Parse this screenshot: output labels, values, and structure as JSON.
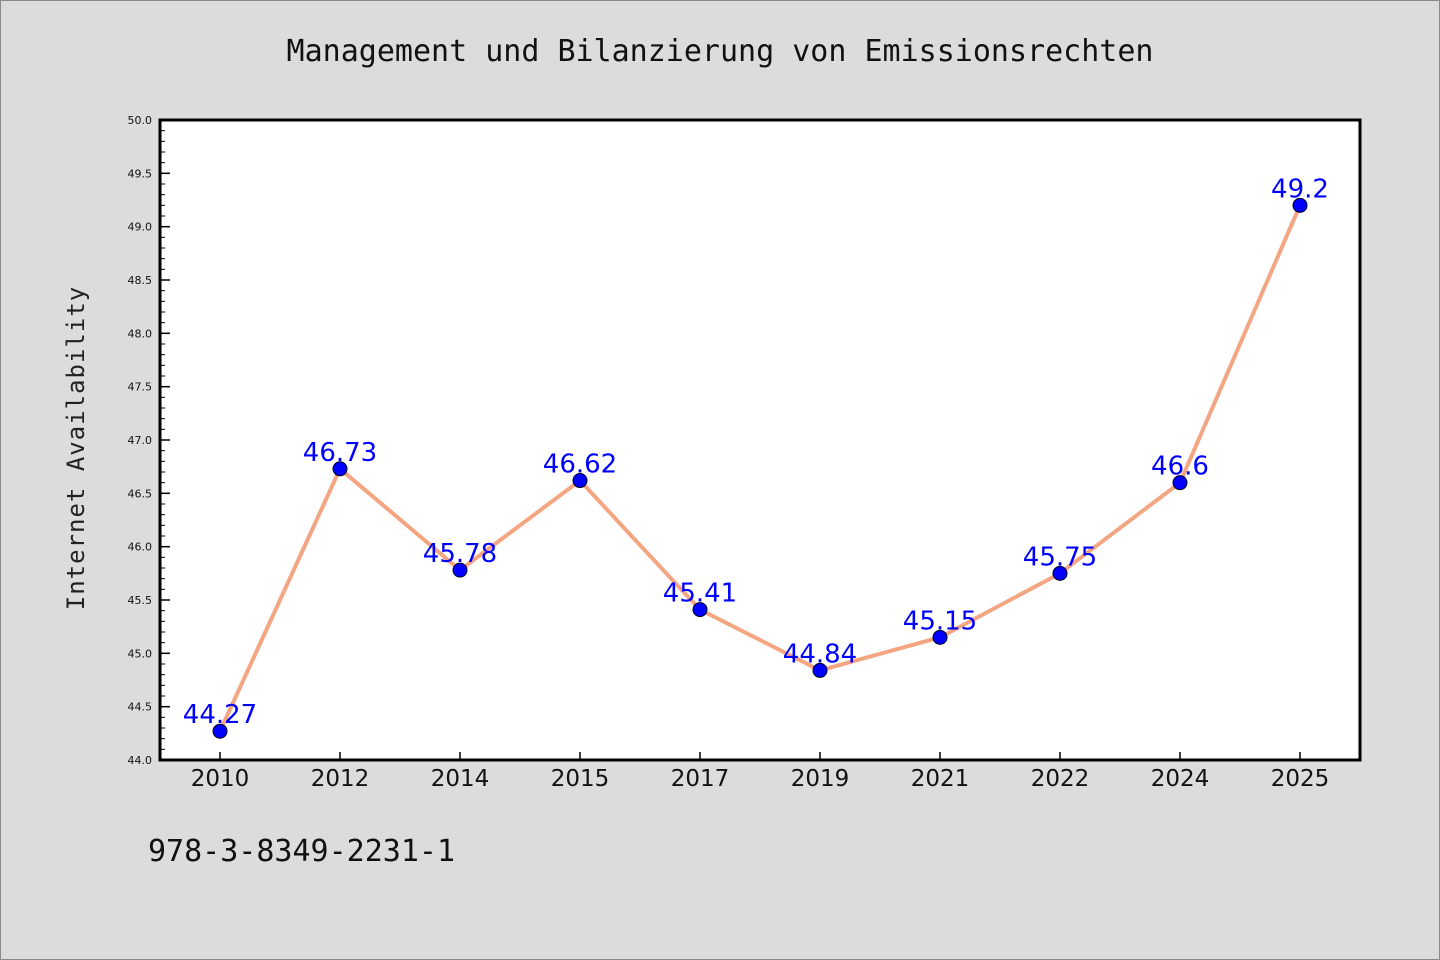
{
  "chart_data": {
    "type": "line",
    "title": "Management und Bilanzierung von Emissionsrechten",
    "xlabel": "",
    "ylabel": "Internet Availability",
    "categories": [
      "2010",
      "2012",
      "2014",
      "2015",
      "2017",
      "2019",
      "2021",
      "2022",
      "2024",
      "2025"
    ],
    "series": [
      {
        "values": [
          44.27,
          46.73,
          45.78,
          46.62,
          45.41,
          44.84,
          45.15,
          45.75,
          46.6,
          49.2
        ],
        "labels": [
          "44.27",
          "46.73",
          "45.78",
          "46.62",
          "45.41",
          "44.84",
          "45.15",
          "45.75",
          "46.6",
          "49.2"
        ]
      }
    ],
    "ylim": [
      44.0,
      50.0
    ],
    "yticks": [
      "44.0",
      "44.5",
      "45.0",
      "45.5",
      "46.0",
      "46.5",
      "47.0",
      "47.5",
      "48.0",
      "48.5",
      "49.0",
      "49.5",
      "50.0"
    ],
    "grid": false,
    "legend": "none",
    "colors": {
      "line": "#f4a582",
      "marker": "#0000ff",
      "data_label": "#0000ff",
      "background": "#dcdcdc",
      "plot_background": "#ffffff"
    }
  },
  "footer": {
    "isbn": "978-3-8349-2231-1"
  }
}
